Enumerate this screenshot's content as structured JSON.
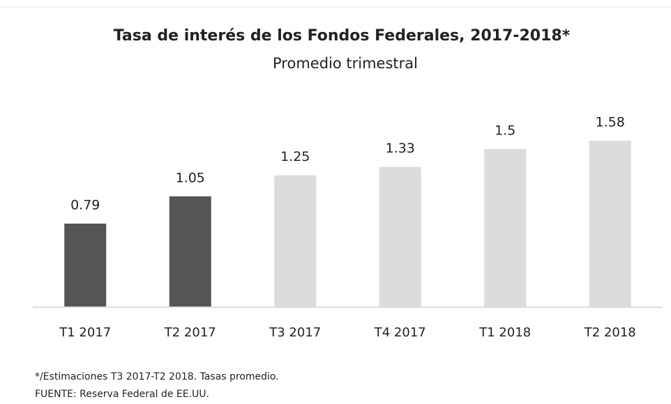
{
  "chart_data": {
    "type": "bar",
    "title": "Tasa de interés de los Fondos Federales, 2017-2018*",
    "subtitle": "Promedio trimestral",
    "categories": [
      "T1 2017",
      "T2 2017",
      "T3 2017",
      "T4 2017",
      "T1 2018",
      "T2 2018"
    ],
    "values": [
      0.79,
      1.05,
      1.25,
      1.33,
      1.5,
      1.58
    ],
    "colors": [
      "#555555",
      "#555555",
      "#dcdcdc",
      "#dcdcdc",
      "#dcdcdc",
      "#dcdcdc"
    ],
    "note": "*/Estimaciones T3 2017-T2 2018. Tasas promedio.",
    "source": "FUENTE: Reserva Federal de EE.UU."
  }
}
